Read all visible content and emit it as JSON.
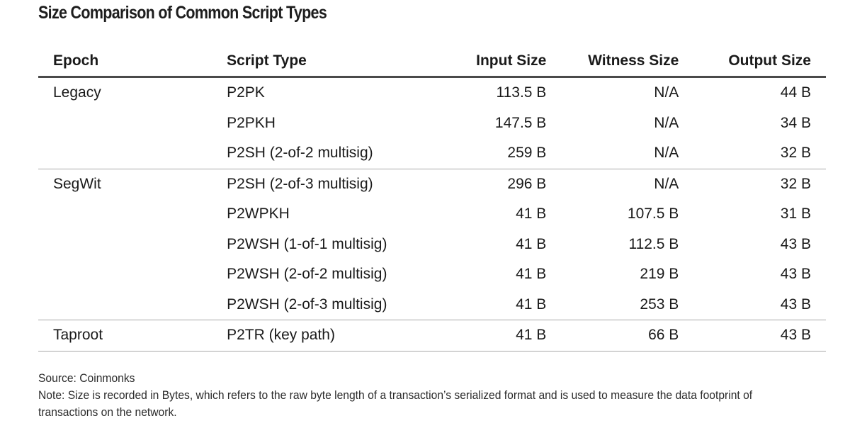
{
  "title": "Size Comparison of Common Script Types",
  "table": {
    "headers": {
      "epoch": "Epoch",
      "script_type": "Script Type",
      "input_size": "Input Size",
      "witness_size": "Witness Size",
      "output_size": "Output Size"
    },
    "rows": [
      {
        "epoch": "Legacy",
        "script_type": "P2PK",
        "input_size": "113.5 B",
        "witness_size": "N/A",
        "output_size": "44 B"
      },
      {
        "epoch": "",
        "script_type": "P2PKH",
        "input_size": "147.5 B",
        "witness_size": "N/A",
        "output_size": "34 B"
      },
      {
        "epoch": "",
        "script_type": "P2SH (2-of-2 multisig)",
        "input_size": "259 B",
        "witness_size": "N/A",
        "output_size": "32 B"
      },
      {
        "epoch": "SegWit",
        "script_type": "P2SH (2-of-3 multisig)",
        "input_size": "296 B",
        "witness_size": "N/A",
        "output_size": "32 B"
      },
      {
        "epoch": "",
        "script_type": "P2WPKH",
        "input_size": "41 B",
        "witness_size": "107.5 B",
        "output_size": "31 B"
      },
      {
        "epoch": "",
        "script_type": "P2WSH (1-of-1 multisig)",
        "input_size": "41 B",
        "witness_size": "112.5 B",
        "output_size": "43 B"
      },
      {
        "epoch": "",
        "script_type": "P2WSH (2-of-2 multisig)",
        "input_size": "41 B",
        "witness_size": "219 B",
        "output_size": "43 B"
      },
      {
        "epoch": "",
        "script_type": "P2WSH (2-of-3 multisig)",
        "input_size": "41 B",
        "witness_size": "253 B",
        "output_size": "43 B"
      },
      {
        "epoch": "Taproot",
        "script_type": "P2TR (key path)",
        "input_size": "41 B",
        "witness_size": "66 B",
        "output_size": "43 B"
      }
    ]
  },
  "footer": {
    "source": "Source: Coinmonks",
    "note": "Note: Size is recorded in Bytes, which refers to the raw byte length of a transaction’s serialized format and is used to measure the data footprint of transactions on the network."
  }
}
